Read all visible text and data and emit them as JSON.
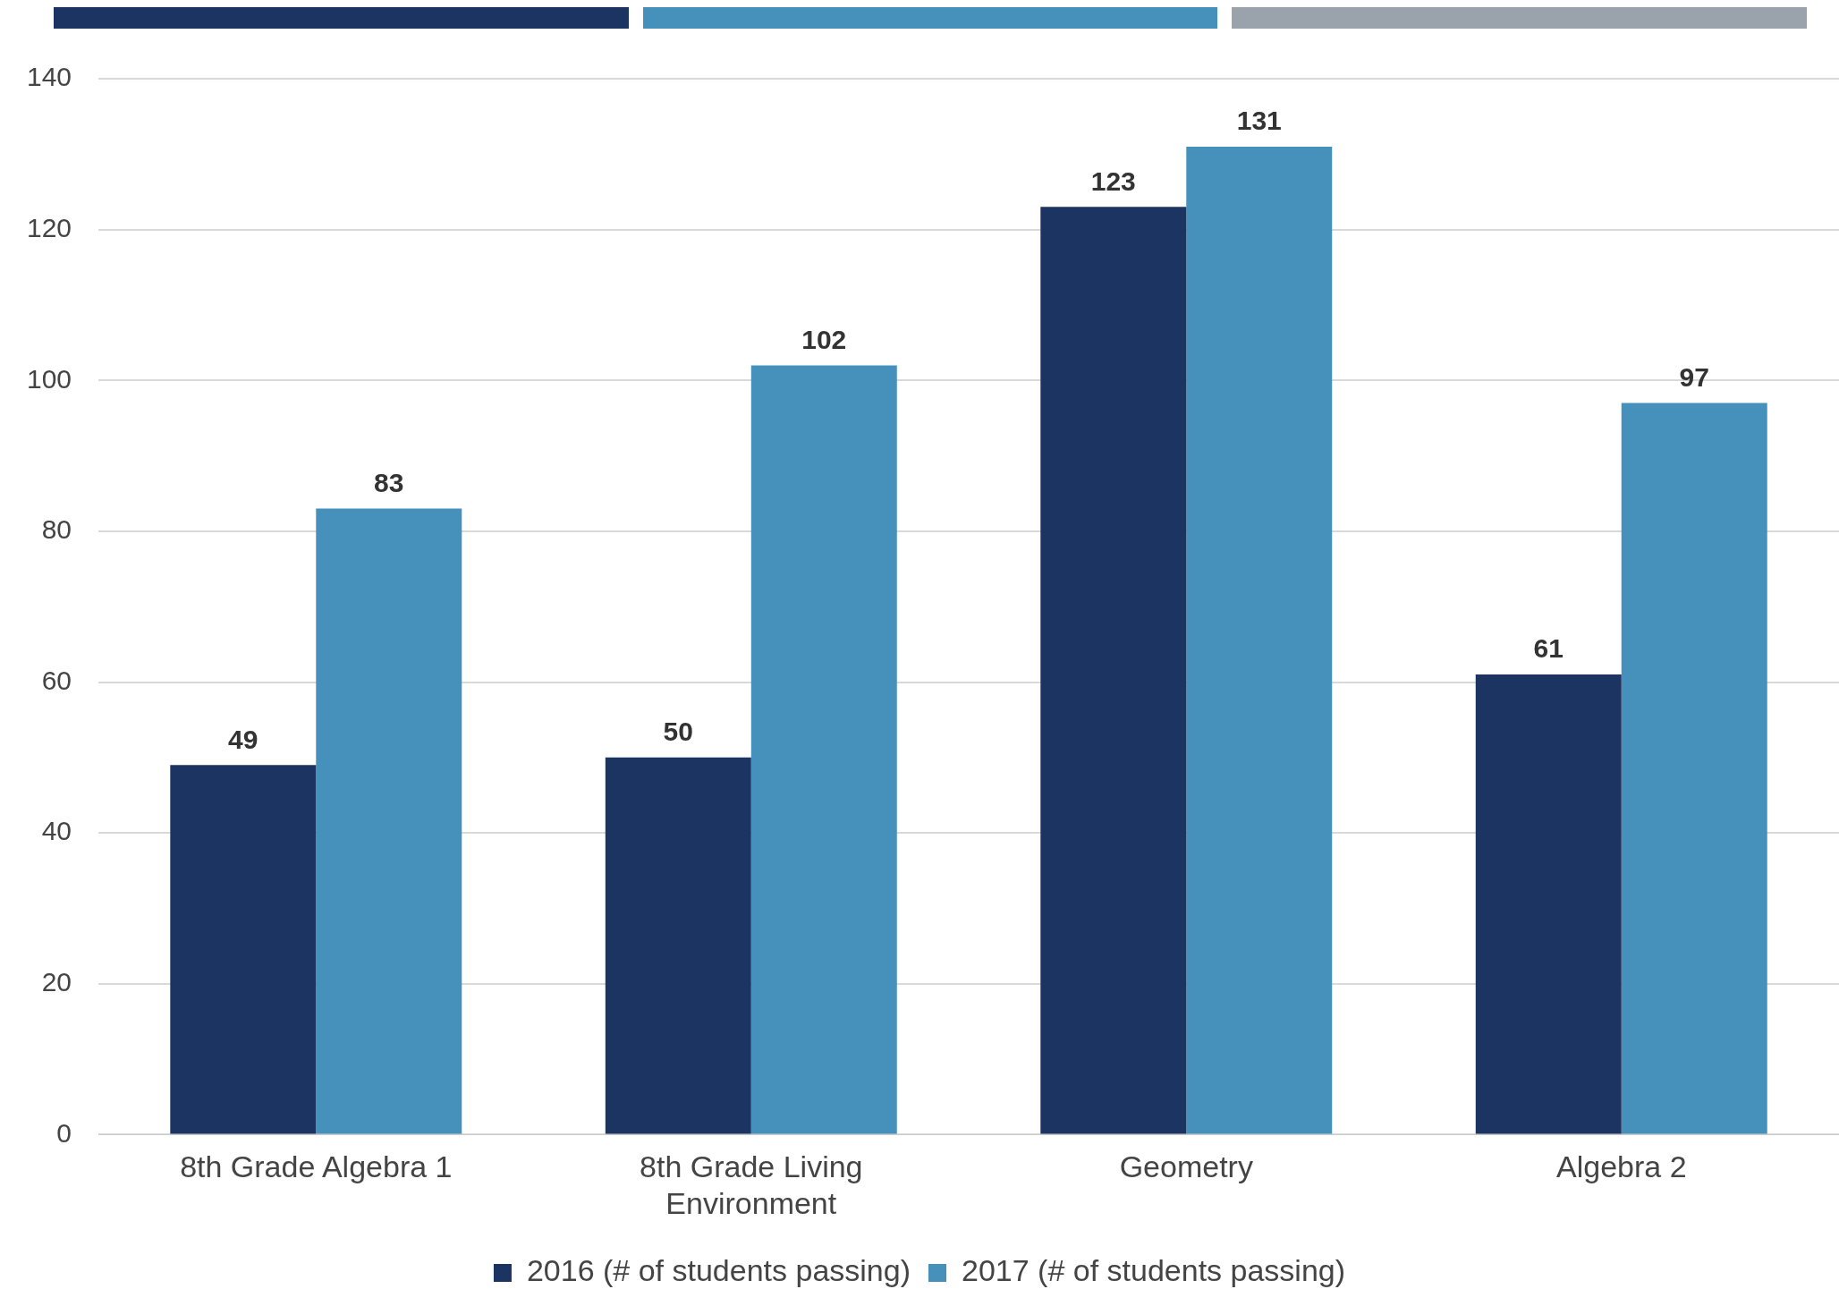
{
  "chart_data": {
    "type": "bar",
    "categories": [
      "8th Grade Algebra 1",
      "8th Grade Living Environment",
      "Geometry",
      "Algebra 2"
    ],
    "series": [
      {
        "name": "2016 (# of students passing)",
        "color": "#1c3461",
        "values": [
          49,
          50,
          123,
          61
        ]
      },
      {
        "name": "2017 (# of students passing)",
        "color": "#4690bc",
        "values": [
          83,
          102,
          131,
          97
        ]
      }
    ],
    "ylim": [
      0,
      140
    ],
    "yticks": [
      0,
      20,
      40,
      60,
      80,
      100,
      120,
      140
    ],
    "grid": "y",
    "legend": "bottom",
    "data_labels": true
  }
}
